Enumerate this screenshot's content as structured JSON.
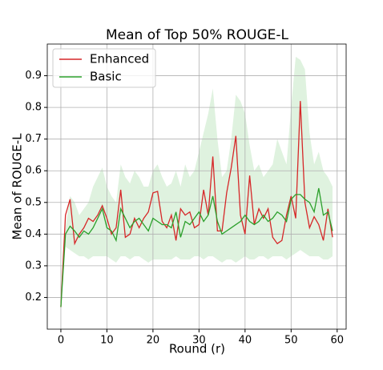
{
  "chart_data": {
    "type": "line",
    "title": "Mean of Top 50% ROUGE-L",
    "x_label": "Round (r)",
    "y_label": "Mean of ROUGE-L",
    "x": [
      0,
      1,
      2,
      3,
      4,
      5,
      6,
      7,
      8,
      9,
      10,
      11,
      12,
      13,
      14,
      15,
      16,
      17,
      18,
      19,
      20,
      21,
      22,
      23,
      24,
      25,
      26,
      27,
      28,
      29,
      30,
      31,
      32,
      33,
      34,
      35,
      36,
      37,
      38,
      39,
      40,
      41,
      42,
      43,
      44,
      45,
      46,
      47,
      48,
      49,
      50,
      51,
      52,
      53,
      54,
      55,
      56,
      57,
      58,
      59
    ],
    "series": [
      {
        "name": "Enhanced",
        "color": "#d62728",
        "values": [
          0.17,
          0.46,
          0.51,
          0.37,
          0.4,
          0.42,
          0.45,
          0.44,
          0.46,
          0.49,
          0.45,
          0.4,
          0.42,
          0.54,
          0.39,
          0.4,
          0.45,
          0.42,
          0.45,
          0.47,
          0.53,
          0.535,
          0.44,
          0.42,
          0.46,
          0.38,
          0.48,
          0.46,
          0.47,
          0.42,
          0.43,
          0.54,
          0.46,
          0.645,
          0.41,
          0.41,
          0.53,
          0.61,
          0.71,
          0.46,
          0.4,
          0.585,
          0.43,
          0.48,
          0.45,
          0.48,
          0.39,
          0.37,
          0.38,
          0.46,
          0.52,
          0.45,
          0.82,
          0.5,
          0.42,
          0.455,
          0.43,
          0.38,
          0.48,
          0.39
        ]
      },
      {
        "name": "Basic",
        "color": "#2ca02c",
        "band_color": "#dff2df",
        "values": [
          0.17,
          0.4,
          0.425,
          0.41,
          0.39,
          0.41,
          0.4,
          0.42,
          0.45,
          0.48,
          0.42,
          0.41,
          0.38,
          0.48,
          0.45,
          0.42,
          0.44,
          0.45,
          0.43,
          0.41,
          0.45,
          0.44,
          0.43,
          0.43,
          0.42,
          0.47,
          0.39,
          0.44,
          0.43,
          0.45,
          0.47,
          0.44,
          0.46,
          0.52,
          0.44,
          0.4,
          0.41,
          0.42,
          0.43,
          0.44,
          0.46,
          0.44,
          0.43,
          0.44,
          0.46,
          0.44,
          0.45,
          0.47,
          0.46,
          0.44,
          0.51,
          0.525,
          0.525,
          0.51,
          0.5,
          0.47,
          0.545,
          0.46,
          0.47,
          0.41
        ],
        "lower": [
          0.17,
          0.36,
          0.35,
          0.34,
          0.33,
          0.33,
          0.32,
          0.33,
          0.33,
          0.33,
          0.33,
          0.32,
          0.31,
          0.33,
          0.33,
          0.32,
          0.33,
          0.33,
          0.32,
          0.31,
          0.32,
          0.32,
          0.32,
          0.32,
          0.32,
          0.33,
          0.32,
          0.32,
          0.32,
          0.33,
          0.33,
          0.32,
          0.33,
          0.33,
          0.32,
          0.31,
          0.32,
          0.32,
          0.31,
          0.32,
          0.33,
          0.32,
          0.32,
          0.33,
          0.33,
          0.32,
          0.33,
          0.33,
          0.33,
          0.32,
          0.33,
          0.34,
          0.35,
          0.34,
          0.33,
          0.33,
          0.33,
          0.32,
          0.32,
          0.33
        ],
        "upper": [
          0.17,
          0.42,
          0.52,
          0.5,
          0.46,
          0.48,
          0.5,
          0.55,
          0.58,
          0.61,
          0.55,
          0.52,
          0.5,
          0.62,
          0.58,
          0.56,
          0.6,
          0.58,
          0.55,
          0.55,
          0.6,
          0.62,
          0.58,
          0.55,
          0.56,
          0.6,
          0.55,
          0.62,
          0.58,
          0.6,
          0.66,
          0.72,
          0.78,
          0.86,
          0.7,
          0.58,
          0.6,
          0.7,
          0.84,
          0.82,
          0.78,
          0.68,
          0.6,
          0.62,
          0.58,
          0.6,
          0.62,
          0.7,
          0.66,
          0.62,
          0.8,
          0.96,
          0.95,
          0.92,
          0.72,
          0.62,
          0.66,
          0.6,
          0.58,
          0.55
        ]
      }
    ],
    "xlim": [
      -2.95,
      61.95
    ],
    "ylim": [
      0.1,
      1.0
    ],
    "xticks": [
      0,
      10,
      20,
      30,
      40,
      50,
      60
    ],
    "yticks": [
      0.2,
      0.3,
      0.4,
      0.5,
      0.6,
      0.7,
      0.8,
      0.9
    ],
    "grid": true,
    "legend": "upper left"
  }
}
